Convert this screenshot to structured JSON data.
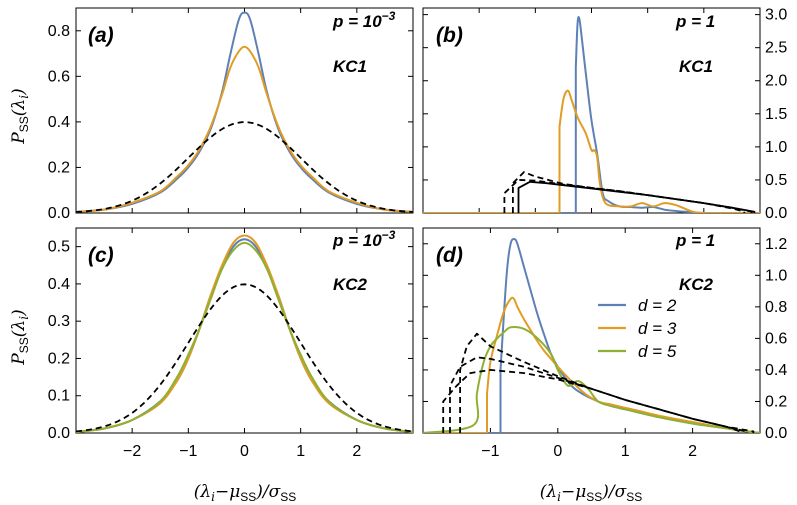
{
  "figure": {
    "ylabel": "P_SS(λ_i)",
    "xlabel": "(λ_i−μ_SS)/σ_SS",
    "legend": [
      {
        "label": "d = 2",
        "color": "#5e81b5"
      },
      {
        "label": "d = 3",
        "color": "#e19c24"
      },
      {
        "label": "d = 5",
        "color": "#8fb032"
      }
    ]
  },
  "chart_data": [
    {
      "panel": "(a)",
      "type": "line",
      "p_label": "p = 10^-3",
      "kc_label": "KC1",
      "xlim": [
        -3,
        3
      ],
      "ylim": [
        0,
        0.9
      ],
      "yticks": [
        0.0,
        0.2,
        0.4,
        0.6,
        0.8
      ],
      "ytick_side": "left",
      "series": [
        {
          "name": "d = 2",
          "color": "#5e81b5",
          "x": [
            -3,
            -2.5,
            -2,
            -1.5,
            -1.2,
            -1,
            -0.8,
            -0.6,
            -0.4,
            -0.25,
            -0.1,
            0,
            0.1,
            0.25,
            0.4,
            0.6,
            0.8,
            1,
            1.2,
            1.5,
            2,
            2.5,
            3
          ],
          "y": [
            0.005,
            0.015,
            0.04,
            0.09,
            0.15,
            0.2,
            0.27,
            0.37,
            0.53,
            0.7,
            0.85,
            0.88,
            0.85,
            0.7,
            0.53,
            0.37,
            0.27,
            0.2,
            0.15,
            0.09,
            0.04,
            0.015,
            0.005
          ]
        },
        {
          "name": "d = 3",
          "color": "#e19c24",
          "x": [
            -3,
            -2.5,
            -2,
            -1.5,
            -1.2,
            -1,
            -0.8,
            -0.6,
            -0.4,
            -0.25,
            -0.1,
            0,
            0.1,
            0.25,
            0.4,
            0.6,
            0.8,
            1,
            1.2,
            1.5,
            2,
            2.5,
            3
          ],
          "y": [
            0.005,
            0.015,
            0.045,
            0.095,
            0.16,
            0.21,
            0.28,
            0.38,
            0.52,
            0.64,
            0.71,
            0.73,
            0.71,
            0.64,
            0.52,
            0.38,
            0.28,
            0.21,
            0.16,
            0.095,
            0.045,
            0.015,
            0.005
          ]
        },
        {
          "name": "Gaussian",
          "style": "dashed",
          "color": "#000000",
          "function": "gaussian"
        }
      ]
    },
    {
      "panel": "(b)",
      "type": "line",
      "p_label": "p = 1",
      "kc_label": "KC1",
      "xlim": [
        -3,
        3
      ],
      "ylim": [
        0,
        3.1
      ],
      "yticks": [
        0.0,
        0.5,
        1.0,
        1.5,
        2.0,
        2.5,
        3.0
      ],
      "ytick_side": "right",
      "series": [
        {
          "name": "d = 2",
          "color": "#5e81b5",
          "x": [
            -3,
            -0.28,
            -0.28,
            -0.25,
            -0.22,
            -0.18,
            -0.1,
            0,
            0.1,
            0.2,
            0.3,
            0.5,
            0.7,
            0.9,
            1.1,
            1.3,
            1.5,
            1.8,
            2,
            2.5,
            3
          ],
          "y": [
            0,
            0,
            2.2,
            2.85,
            2.95,
            2.7,
            2.1,
            1.4,
            0.9,
            0.3,
            0.18,
            0.1,
            0.09,
            0.08,
            0.09,
            0.05,
            0.03,
            0.01,
            0,
            0,
            0
          ]
        },
        {
          "name": "d = 3",
          "color": "#e19c24",
          "x": [
            -3,
            -0.57,
            -0.57,
            -0.5,
            -0.42,
            -0.35,
            -0.25,
            -0.1,
            0,
            0.05,
            0.1,
            0.15,
            0.25,
            0.5,
            0.7,
            0.9,
            1.1,
            1.3,
            1.5,
            1.8,
            2,
            2.5,
            3
          ],
          "y": [
            0,
            0,
            1.3,
            1.72,
            1.85,
            1.7,
            1.45,
            1.2,
            0.95,
            0.95,
            0.85,
            0.45,
            0.15,
            0.1,
            0.1,
            0.15,
            0.1,
            0.15,
            0.12,
            0.02,
            0,
            0,
            0
          ]
        },
        {
          "name": "dashed-1",
          "style": "dashed",
          "color": "#000000",
          "x": [
            -1.4,
            -1.4,
            -1.2,
            -1.0,
            -0.5,
            0,
            0.5,
            1,
            1.5,
            2,
            2.5,
            2.72,
            2.72
          ],
          "y": [
            0,
            0.45,
            0.62,
            0.55,
            0.44,
            0.38,
            0.33,
            0.27,
            0.21,
            0.15,
            0.07,
            0.02,
            0
          ]
        },
        {
          "name": "dashed-2",
          "style": "dashed",
          "color": "#000000",
          "x": [
            -1.55,
            -1.55,
            -1.3,
            -1.0,
            -0.5,
            0,
            0.5,
            1,
            1.5,
            2,
            2.5,
            2.85,
            2.85
          ],
          "y": [
            0,
            0.3,
            0.5,
            0.49,
            0.43,
            0.38,
            0.33,
            0.27,
            0.21,
            0.15,
            0.08,
            0.02,
            0
          ]
        },
        {
          "name": "solid-black",
          "style": "solid",
          "color": "#000000",
          "x": [
            -1.3,
            -1.3,
            -1.1,
            -0.8,
            -0.5,
            0,
            0.5,
            1,
            1.5,
            2,
            2.5,
            2.9,
            2.9
          ],
          "y": [
            0,
            0.38,
            0.47,
            0.45,
            0.42,
            0.37,
            0.32,
            0.27,
            0.21,
            0.15,
            0.08,
            0.02,
            0
          ]
        }
      ]
    },
    {
      "panel": "(c)",
      "type": "line",
      "p_label": "p = 10^-3",
      "kc_label": "KC2",
      "xlim": [
        -3,
        3
      ],
      "ylim": [
        0,
        0.55
      ],
      "yticks": [
        0.0,
        0.1,
        0.2,
        0.3,
        0.4,
        0.5
      ],
      "ytick_side": "left",
      "xticks": [
        -2,
        -1,
        0,
        1,
        2
      ],
      "series": [
        {
          "name": "d = 2",
          "color": "#5e81b5",
          "x": [
            -3,
            -2.5,
            -2,
            -1.5,
            -1.2,
            -1,
            -0.8,
            -0.6,
            -0.4,
            -0.2,
            0,
            0.2,
            0.4,
            0.6,
            0.8,
            1,
            1.2,
            1.5,
            2,
            2.5,
            3
          ],
          "y": [
            0.003,
            0.012,
            0.035,
            0.085,
            0.14,
            0.2,
            0.28,
            0.37,
            0.44,
            0.5,
            0.52,
            0.5,
            0.44,
            0.37,
            0.28,
            0.2,
            0.14,
            0.085,
            0.035,
            0.012,
            0.003
          ]
        },
        {
          "name": "d = 3",
          "color": "#e19c24",
          "x": [
            -3,
            -2.5,
            -2,
            -1.5,
            -1.2,
            -1,
            -0.8,
            -0.6,
            -0.4,
            -0.2,
            0,
            0.2,
            0.4,
            0.6,
            0.8,
            1,
            1.2,
            1.5,
            2,
            2.5,
            3
          ],
          "y": [
            0.003,
            0.012,
            0.035,
            0.08,
            0.14,
            0.2,
            0.28,
            0.37,
            0.45,
            0.51,
            0.53,
            0.51,
            0.45,
            0.37,
            0.28,
            0.2,
            0.14,
            0.08,
            0.035,
            0.012,
            0.003
          ]
        },
        {
          "name": "d = 5",
          "color": "#8fb032",
          "x": [
            -3,
            -2.5,
            -2,
            -1.5,
            -1.2,
            -1,
            -0.8,
            -0.6,
            -0.4,
            -0.2,
            0,
            0.2,
            0.4,
            0.6,
            0.8,
            1,
            1.2,
            1.5,
            2,
            2.5,
            3
          ],
          "y": [
            0.003,
            0.012,
            0.035,
            0.085,
            0.15,
            0.21,
            0.28,
            0.36,
            0.44,
            0.49,
            0.51,
            0.49,
            0.44,
            0.36,
            0.28,
            0.21,
            0.15,
            0.085,
            0.035,
            0.012,
            0.003
          ]
        },
        {
          "name": "Gaussian",
          "style": "dashed",
          "color": "#000000",
          "function": "gaussian"
        }
      ]
    },
    {
      "panel": "(d)",
      "type": "line",
      "p_label": "p = 1",
      "kc_label": "KC2",
      "xlim": [
        -2,
        3
      ],
      "ylim": [
        0,
        1.3
      ],
      "yticks": [
        0.0,
        0.2,
        0.4,
        0.6,
        0.8,
        1.0,
        1.2
      ],
      "ytick_side": "right",
      "xticks": [
        -1,
        0,
        1,
        2
      ],
      "series": [
        {
          "name": "d = 2",
          "color": "#5e81b5",
          "x": [
            -2,
            -0.85,
            -0.85,
            -0.8,
            -0.75,
            -0.7,
            -0.65,
            -0.6,
            -0.5,
            -0.4,
            -0.3,
            -0.2,
            -0.1,
            0,
            0.2,
            0.4,
            0.6,
            0.8,
            1.0,
            1.2,
            1.5,
            2,
            2.5,
            2.8,
            3
          ],
          "y": [
            0,
            0,
            0.4,
            0.75,
            1.05,
            1.2,
            1.23,
            1.2,
            1.05,
            0.9,
            0.75,
            0.62,
            0.5,
            0.42,
            0.3,
            0.24,
            0.2,
            0.17,
            0.15,
            0.13,
            0.1,
            0.06,
            0.03,
            0.01,
            0
          ]
        },
        {
          "name": "d = 3",
          "color": "#e19c24",
          "x": [
            -2,
            -1.05,
            -1.05,
            -1.0,
            -0.9,
            -0.8,
            -0.7,
            -0.65,
            -0.6,
            -0.5,
            -0.4,
            -0.3,
            -0.2,
            -0.1,
            0,
            0.2,
            0.4,
            0.6,
            0.8,
            1.0,
            1.2,
            1.5,
            2,
            2.5,
            2.8,
            3
          ],
          "y": [
            0,
            0,
            0.25,
            0.45,
            0.62,
            0.77,
            0.85,
            0.85,
            0.8,
            0.72,
            0.65,
            0.58,
            0.52,
            0.47,
            0.42,
            0.33,
            0.25,
            0.2,
            0.18,
            0.16,
            0.14,
            0.11,
            0.07,
            0.03,
            0.01,
            0
          ]
        },
        {
          "name": "d = 5",
          "color": "#8fb032",
          "x": [
            -2,
            -1.25,
            -1.2,
            -1.1,
            -1.0,
            -0.9,
            -0.8,
            -0.7,
            -0.5,
            -0.3,
            -0.1,
            0,
            0.15,
            0.3,
            0.45,
            0.6,
            0.8,
            1.0,
            1.2,
            1.5,
            2,
            2.5,
            2.8,
            3
          ],
          "y": [
            0,
            0.05,
            0.25,
            0.45,
            0.55,
            0.6,
            0.64,
            0.67,
            0.66,
            0.6,
            0.5,
            0.4,
            0.3,
            0.33,
            0.28,
            0.2,
            0.17,
            0.15,
            0.13,
            0.1,
            0.06,
            0.03,
            0.01,
            0
          ]
        },
        {
          "name": "dashed-1",
          "style": "dashed",
          "color": "#000000",
          "x": [
            -1.45,
            -1.45,
            -1.35,
            -1.2,
            -1.0,
            -0.5,
            0,
            0.5,
            1,
            1.5,
            2,
            2.5,
            2.7,
            2.7
          ],
          "y": [
            0,
            0.4,
            0.55,
            0.63,
            0.55,
            0.45,
            0.36,
            0.28,
            0.21,
            0.15,
            0.09,
            0.04,
            0.01,
            0
          ]
        },
        {
          "name": "dashed-2",
          "style": "dashed",
          "color": "#000000",
          "x": [
            -1.6,
            -1.6,
            -1.45,
            -1.2,
            -1.0,
            -0.5,
            0,
            0.5,
            1,
            1.5,
            2,
            2.5,
            2.8,
            2.8
          ],
          "y": [
            0,
            0.3,
            0.42,
            0.48,
            0.47,
            0.42,
            0.35,
            0.28,
            0.21,
            0.15,
            0.09,
            0.04,
            0.01,
            0
          ]
        },
        {
          "name": "dashed-3",
          "style": "dashed",
          "color": "#000000",
          "x": [
            -1.7,
            -1.7,
            -1.5,
            -1.3,
            -1.0,
            -0.5,
            0,
            0.5,
            1,
            1.5,
            2,
            2.5,
            2.9,
            2.9
          ],
          "y": [
            0,
            0.2,
            0.3,
            0.38,
            0.4,
            0.38,
            0.34,
            0.28,
            0.21,
            0.15,
            0.09,
            0.04,
            0.01,
            0
          ]
        }
      ]
    }
  ]
}
